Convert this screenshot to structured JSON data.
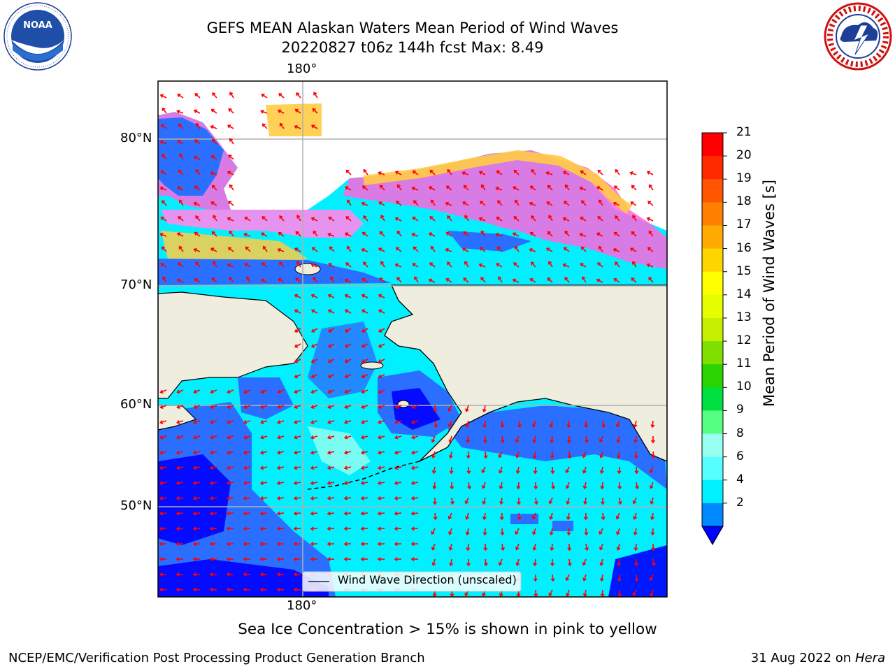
{
  "title": {
    "line1": "GEFS MEAN Alaskan Waters Mean Period of Wind Waves",
    "line2": "20220827 t06z 144h fcst   Max: 8.49"
  },
  "logos": {
    "left": "noaa-logo",
    "right": "nws-logo"
  },
  "map": {
    "top_lon_label": "180°",
    "bottom_lon_label": "180°",
    "lat_labels": [
      "80°N",
      "70°N",
      "60°N",
      "50°N"
    ],
    "legend_label": "Wind Wave Direction (unscaled)",
    "colors": {
      "land": "#efedde",
      "coast": "#000000",
      "arrow": "#ff0000",
      "grid": "#b0b0b0"
    }
  },
  "colorbar": {
    "title": "Mean Period of Wind Waves [s]",
    "ticks": [
      "21",
      "20",
      "19",
      "18",
      "17",
      "16",
      "15",
      "14",
      "13",
      "12",
      "11",
      "10",
      "9",
      "8",
      "6",
      "4",
      "2"
    ],
    "bins": [
      {
        "color": "#ff0000"
      },
      {
        "color": "#ff2a00"
      },
      {
        "color": "#ff5500"
      },
      {
        "color": "#ff8000"
      },
      {
        "color": "#ffaa00"
      },
      {
        "color": "#ffd500"
      },
      {
        "color": "#ffff00"
      },
      {
        "color": "#e5ff00"
      },
      {
        "color": "#c4f000"
      },
      {
        "color": "#7fe000"
      },
      {
        "color": "#2ad400"
      },
      {
        "color": "#00e040"
      },
      {
        "color": "#55ff80"
      },
      {
        "color": "#99fff0"
      },
      {
        "color": "#55ffff"
      },
      {
        "color": "#00f0ff"
      },
      {
        "color": "#0088ff"
      }
    ],
    "extend_color": "#0000ff"
  },
  "note": "Sea Ice Concentration > 15% is shown in pink to yellow",
  "footer": {
    "left": "NCEP/EMC/Verification Post Processing Product Generation Branch",
    "right_date": "31 Aug 2022 on",
    "right_machine": "Hera"
  }
}
